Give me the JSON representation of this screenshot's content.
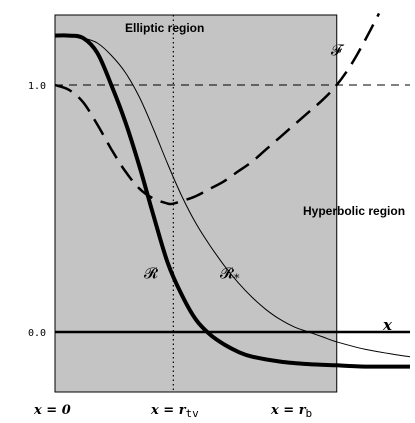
{
  "chart_data": {
    "type": "line",
    "title": "",
    "xlabel": "x",
    "ylabel": "",
    "regions": {
      "elliptic_label": "Elliptic region",
      "hyperbolic_label": "Hyperbolic region"
    },
    "x_tick_labels": {
      "origin": {
        "prefix": "x = ",
        "value": "0"
      },
      "turning": {
        "prefix": "x = r",
        "sub": "tv"
      },
      "boundary": {
        "prefix": "x = r",
        "sub": "b"
      }
    },
    "y_ticks": [
      {
        "label": "1.0",
        "y": 1.0
      },
      {
        "label": "0.0",
        "y": 0.0
      }
    ],
    "x_markers": {
      "origin": 0.0,
      "turning": 0.42,
      "boundary": 1.0
    },
    "xlim": [
      0.0,
      1.26
    ],
    "ylim": [
      -0.25,
      1.35
    ],
    "reference_lines": {
      "y_dashed": 1.0,
      "y_axis_solid": 0.0
    },
    "series": [
      {
        "name": "R",
        "style": "thick-solid",
        "x": [
          0.0,
          0.05,
          0.1,
          0.15,
          0.2,
          0.25,
          0.3,
          0.35,
          0.4,
          0.45,
          0.5,
          0.55,
          0.6,
          0.65,
          0.7,
          0.8,
          0.9,
          1.0,
          1.1,
          1.2,
          1.26
        ],
        "y": [
          1.2,
          1.2,
          1.19,
          1.13,
          1.0,
          0.85,
          0.67,
          0.47,
          0.28,
          0.15,
          0.05,
          -0.01,
          -0.05,
          -0.08,
          -0.1,
          -0.12,
          -0.13,
          -0.135,
          -0.14,
          -0.14,
          -0.14
        ]
      },
      {
        "name": "R*",
        "style": "thin-solid",
        "x": [
          0.0,
          0.05,
          0.1,
          0.15,
          0.2,
          0.25,
          0.3,
          0.35,
          0.4,
          0.45,
          0.5,
          0.55,
          0.6,
          0.65,
          0.7,
          0.75,
          0.8,
          0.85,
          0.9,
          0.95,
          1.0,
          1.1,
          1.2,
          1.26
        ],
        "y": [
          1.2,
          1.2,
          1.19,
          1.17,
          1.12,
          1.05,
          0.95,
          0.82,
          0.68,
          0.55,
          0.44,
          0.35,
          0.27,
          0.2,
          0.14,
          0.09,
          0.05,
          0.02,
          0.0,
          -0.02,
          -0.04,
          -0.07,
          -0.09,
          -0.1
        ]
      },
      {
        "name": "F",
        "style": "long-dash",
        "x": [
          0.0,
          0.05,
          0.1,
          0.15,
          0.2,
          0.25,
          0.3,
          0.35,
          0.4,
          0.42,
          0.45,
          0.5,
          0.55,
          0.6,
          0.65,
          0.7,
          0.75,
          0.8,
          0.85,
          0.9,
          0.95,
          1.0,
          1.05,
          1.1,
          1.15
        ],
        "y": [
          1.0,
          0.98,
          0.93,
          0.84,
          0.74,
          0.65,
          0.58,
          0.54,
          0.52,
          0.52,
          0.53,
          0.55,
          0.58,
          0.61,
          0.65,
          0.69,
          0.74,
          0.79,
          0.84,
          0.89,
          0.94,
          1.0,
          1.08,
          1.18,
          1.29
        ]
      }
    ],
    "curve_labels": {
      "R": {
        "main": "𝓡",
        "sub": ""
      },
      "R*": {
        "main": "𝓡",
        "sub": "*"
      },
      "F": {
        "main": "𝓕",
        "sub": ""
      }
    },
    "shaded_region_x": [
      0.0,
      1.0
    ],
    "grid": false,
    "legend": "none",
    "colors": {
      "shade": "#c4c4c4",
      "ink": "#000000",
      "background": "#ffffff"
    }
  }
}
